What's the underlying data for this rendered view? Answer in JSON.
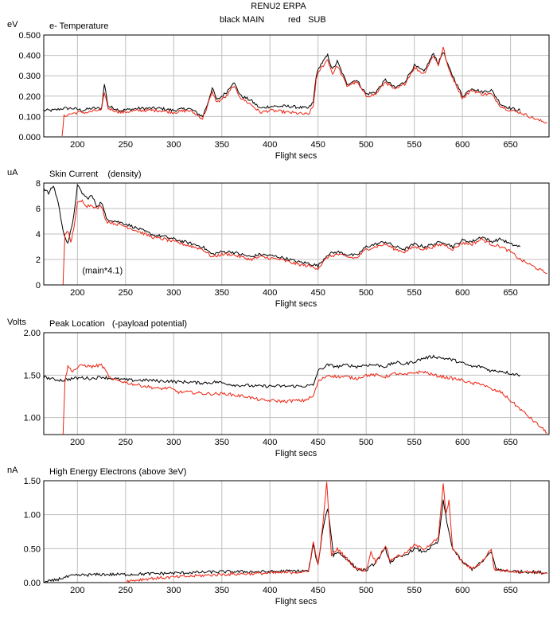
{
  "header": {
    "title": "RENU2 ERPA",
    "legend_black": "black MAIN",
    "legend_red": "red   SUB"
  },
  "colors": {
    "main": "#000000",
    "sub": "#ee2211",
    "grid": "#bfbfbf",
    "axis": "#000000"
  },
  "chart_data": [
    {
      "type": "line",
      "title": "e- Temperature",
      "unit": "eV",
      "xlabel": "Flight secs",
      "xlim": [
        165,
        690
      ],
      "ylim": [
        0,
        0.5
      ],
      "xticks": [
        200,
        250,
        300,
        350,
        400,
        450,
        500,
        550,
        600,
        650
      ],
      "yticks": [
        0,
        0.1,
        0.2,
        0.3,
        0.4,
        0.5
      ],
      "ytick_labels": [
        "0.000",
        "0.100",
        "0.200",
        "0.300",
        "0.400",
        "0.500"
      ],
      "annotation": "",
      "series": [
        {
          "name": "MAIN",
          "color": "black",
          "x": [
            165,
            175,
            185,
            195,
            205,
            215,
            225,
            228,
            232,
            245,
            265,
            285,
            300,
            315,
            320,
            330,
            335,
            340,
            345,
            355,
            362,
            370,
            380,
            390,
            400,
            420,
            440,
            445,
            448,
            452,
            460,
            465,
            470,
            480,
            490,
            500,
            510,
            520,
            530,
            540,
            550,
            560,
            570,
            575,
            580,
            585,
            590,
            600,
            610,
            620,
            630,
            640,
            650,
            660
          ],
          "y": [
            0.13,
            0.13,
            0.14,
            0.14,
            0.13,
            0.14,
            0.14,
            0.26,
            0.15,
            0.13,
            0.14,
            0.14,
            0.13,
            0.14,
            0.13,
            0.1,
            0.16,
            0.24,
            0.18,
            0.22,
            0.27,
            0.2,
            0.18,
            0.14,
            0.15,
            0.15,
            0.14,
            0.17,
            0.3,
            0.35,
            0.4,
            0.33,
            0.37,
            0.26,
            0.28,
            0.21,
            0.22,
            0.28,
            0.24,
            0.27,
            0.35,
            0.32,
            0.41,
            0.36,
            0.42,
            0.35,
            0.3,
            0.2,
            0.24,
            0.22,
            0.23,
            0.16,
            0.14,
            0.13
          ]
        },
        {
          "name": "SUB",
          "color": "red",
          "x": [
            184,
            186,
            190,
            200,
            210,
            220,
            225,
            228,
            232,
            245,
            265,
            285,
            300,
            315,
            320,
            330,
            335,
            340,
            345,
            355,
            362,
            370,
            380,
            390,
            400,
            420,
            440,
            445,
            448,
            452,
            460,
            465,
            470,
            480,
            490,
            500,
            510,
            520,
            530,
            540,
            550,
            560,
            570,
            575,
            580,
            585,
            590,
            600,
            610,
            620,
            630,
            640,
            650,
            660,
            670,
            680,
            688
          ],
          "y": [
            0.0,
            0.1,
            0.11,
            0.12,
            0.12,
            0.13,
            0.13,
            0.22,
            0.14,
            0.12,
            0.13,
            0.13,
            0.12,
            0.13,
            0.12,
            0.09,
            0.15,
            0.22,
            0.17,
            0.2,
            0.25,
            0.19,
            0.16,
            0.12,
            0.13,
            0.12,
            0.11,
            0.15,
            0.28,
            0.33,
            0.38,
            0.31,
            0.35,
            0.25,
            0.27,
            0.2,
            0.21,
            0.27,
            0.23,
            0.26,
            0.34,
            0.31,
            0.4,
            0.35,
            0.44,
            0.34,
            0.29,
            0.19,
            0.23,
            0.21,
            0.21,
            0.15,
            0.13,
            0.12,
            0.1,
            0.08,
            0.07
          ]
        }
      ]
    },
    {
      "type": "line",
      "title": "Skin Current    (density)",
      "unit": "uA",
      "xlabel": "Flight secs",
      "xlim": [
        165,
        690
      ],
      "ylim": [
        0,
        8
      ],
      "xticks": [
        200,
        250,
        300,
        350,
        400,
        450,
        500,
        550,
        600,
        650
      ],
      "yticks": [
        0,
        2,
        4,
        6,
        8
      ],
      "ytick_labels": [
        "0",
        "2",
        "4",
        "6",
        "8"
      ],
      "annotation": "(main*4.1)",
      "series": [
        {
          "name": "MAIN",
          "color": "black",
          "x": [
            165,
            170,
            175,
            180,
            185,
            190,
            195,
            200,
            205,
            210,
            215,
            220,
            225,
            230,
            240,
            250,
            260,
            270,
            280,
            290,
            300,
            310,
            320,
            330,
            340,
            350,
            360,
            370,
            380,
            390,
            400,
            410,
            420,
            430,
            440,
            450,
            460,
            470,
            480,
            490,
            500,
            510,
            520,
            530,
            540,
            550,
            560,
            570,
            580,
            590,
            600,
            610,
            620,
            630,
            640,
            650,
            660
          ],
          "y": [
            7.6,
            7.2,
            7.8,
            6.5,
            4.2,
            3.3,
            4.8,
            7.8,
            7.2,
            6.8,
            7.0,
            6.2,
            6.5,
            5.2,
            5.0,
            4.8,
            4.5,
            4.2,
            3.9,
            3.8,
            3.6,
            3.4,
            3.2,
            3.0,
            2.4,
            2.6,
            2.6,
            2.4,
            2.2,
            2.4,
            2.3,
            2.2,
            2.0,
            1.8,
            1.7,
            1.5,
            2.4,
            2.6,
            2.4,
            2.3,
            3.0,
            3.2,
            3.4,
            3.0,
            2.8,
            3.2,
            3.0,
            3.2,
            3.4,
            3.0,
            3.5,
            3.4,
            3.8,
            3.4,
            3.6,
            3.2,
            3.0
          ]
        },
        {
          "name": "SUB",
          "color": "red",
          "x": [
            185,
            187,
            190,
            193,
            196,
            200,
            205,
            210,
            215,
            220,
            225,
            230,
            240,
            250,
            260,
            270,
            280,
            290,
            300,
            310,
            320,
            330,
            340,
            350,
            360,
            370,
            380,
            390,
            400,
            410,
            420,
            430,
            440,
            450,
            460,
            470,
            480,
            490,
            500,
            510,
            520,
            530,
            540,
            550,
            560,
            570,
            580,
            590,
            600,
            610,
            620,
            630,
            640,
            650,
            660,
            670,
            680,
            688
          ],
          "y": [
            0.0,
            4.0,
            4.3,
            3.3,
            4.4,
            6.4,
            6.6,
            6.2,
            6.3,
            6.0,
            6.2,
            5.0,
            4.8,
            4.6,
            4.3,
            4.0,
            3.7,
            3.6,
            3.4,
            3.2,
            3.0,
            2.8,
            2.2,
            2.4,
            2.4,
            2.2,
            2.0,
            2.2,
            2.1,
            2.0,
            1.8,
            1.6,
            1.5,
            1.3,
            2.2,
            2.4,
            2.2,
            2.1,
            2.8,
            3.0,
            3.2,
            2.8,
            2.6,
            3.0,
            2.8,
            3.0,
            3.2,
            2.8,
            3.3,
            3.2,
            3.6,
            3.2,
            3.0,
            2.6,
            2.0,
            1.6,
            1.2,
            0.9
          ]
        }
      ]
    },
    {
      "type": "line",
      "title": "Peak Location   (-payload potential)",
      "unit": "Volts",
      "xlabel": "Flight secs",
      "xlim": [
        165,
        690
      ],
      "ylim": [
        0.8,
        2.0
      ],
      "xticks": [
        200,
        250,
        300,
        350,
        400,
        450,
        500,
        550,
        600,
        650
      ],
      "yticks": [
        1.0,
        1.5,
        2.0
      ],
      "ytick_labels": [
        "1.00",
        "1.50",
        "2.00"
      ],
      "annotation": "",
      "series": [
        {
          "name": "MAIN",
          "color": "black",
          "x": [
            165,
            175,
            185,
            195,
            205,
            215,
            225,
            235,
            245,
            255,
            265,
            275,
            285,
            295,
            305,
            315,
            325,
            335,
            345,
            355,
            365,
            375,
            385,
            395,
            405,
            415,
            425,
            435,
            445,
            450,
            460,
            470,
            480,
            490,
            500,
            510,
            520,
            530,
            540,
            550,
            560,
            570,
            580,
            590,
            600,
            610,
            620,
            630,
            640,
            650,
            660
          ],
          "y": [
            1.48,
            1.45,
            1.44,
            1.46,
            1.47,
            1.46,
            1.48,
            1.46,
            1.45,
            1.44,
            1.44,
            1.44,
            1.43,
            1.43,
            1.42,
            1.42,
            1.41,
            1.41,
            1.42,
            1.4,
            1.38,
            1.38,
            1.37,
            1.37,
            1.37,
            1.37,
            1.37,
            1.37,
            1.38,
            1.55,
            1.62,
            1.6,
            1.62,
            1.6,
            1.62,
            1.62,
            1.6,
            1.65,
            1.63,
            1.66,
            1.7,
            1.72,
            1.7,
            1.68,
            1.64,
            1.6,
            1.6,
            1.55,
            1.55,
            1.52,
            1.5
          ]
        },
        {
          "name": "SUB",
          "color": "red",
          "x": [
            185,
            187,
            190,
            195,
            205,
            215,
            225,
            235,
            245,
            255,
            265,
            275,
            285,
            295,
            305,
            315,
            325,
            335,
            345,
            355,
            365,
            375,
            385,
            395,
            405,
            415,
            425,
            435,
            445,
            450,
            460,
            470,
            480,
            490,
            500,
            510,
            520,
            530,
            540,
            550,
            560,
            570,
            580,
            590,
            600,
            610,
            620,
            630,
            640,
            650,
            660,
            670,
            680,
            688
          ],
          "y": [
            0.8,
            1.42,
            1.6,
            1.55,
            1.62,
            1.6,
            1.62,
            1.45,
            1.43,
            1.4,
            1.38,
            1.36,
            1.34,
            1.35,
            1.3,
            1.3,
            1.29,
            1.28,
            1.28,
            1.28,
            1.26,
            1.25,
            1.22,
            1.2,
            1.2,
            1.19,
            1.2,
            1.2,
            1.25,
            1.42,
            1.5,
            1.48,
            1.48,
            1.46,
            1.5,
            1.5,
            1.48,
            1.52,
            1.5,
            1.53,
            1.54,
            1.5,
            1.48,
            1.46,
            1.44,
            1.4,
            1.4,
            1.33,
            1.3,
            1.2,
            1.1,
            1.0,
            0.9,
            0.82
          ]
        }
      ]
    },
    {
      "type": "line",
      "title": "High Energy Electrons (above 3eV)",
      "unit": "nA",
      "xlabel": "Flight secs",
      "xlim": [
        165,
        690
      ],
      "ylim": [
        0,
        1.5
      ],
      "xticks": [
        200,
        250,
        300,
        350,
        400,
        450,
        500,
        550,
        600,
        650
      ],
      "yticks": [
        0,
        0.5,
        1.0,
        1.5
      ],
      "ytick_labels": [
        "0.00",
        "0.50",
        "1.00",
        "1.50"
      ],
      "annotation": "",
      "series": [
        {
          "name": "MAIN",
          "color": "black",
          "x": [
            165,
            175,
            185,
            195,
            205,
            225,
            250,
            275,
            300,
            325,
            350,
            375,
            400,
            420,
            440,
            445,
            450,
            455,
            460,
            462,
            466,
            470,
            480,
            490,
            500,
            510,
            520,
            525,
            530,
            540,
            550,
            560,
            570,
            575,
            580,
            585,
            590,
            600,
            610,
            620,
            630,
            635,
            640,
            650,
            660,
            670,
            680,
            688
          ],
          "y": [
            0.0,
            0.03,
            0.07,
            0.1,
            0.11,
            0.12,
            0.12,
            0.13,
            0.14,
            0.15,
            0.16,
            0.16,
            0.16,
            0.17,
            0.17,
            0.55,
            0.25,
            0.8,
            1.1,
            0.9,
            0.4,
            0.45,
            0.35,
            0.2,
            0.18,
            0.3,
            0.5,
            0.3,
            0.35,
            0.4,
            0.5,
            0.45,
            0.55,
            0.6,
            1.2,
            0.8,
            0.5,
            0.3,
            0.2,
            0.3,
            0.45,
            0.2,
            0.18,
            0.17,
            0.16,
            0.16,
            0.15,
            0.14
          ]
        },
        {
          "name": "SUB",
          "color": "red",
          "x": [
            250,
            275,
            300,
            325,
            350,
            375,
            400,
            420,
            440,
            445,
            450,
            455,
            459,
            461,
            464,
            470,
            480,
            490,
            500,
            505,
            510,
            520,
            525,
            530,
            540,
            550,
            560,
            570,
            575,
            580,
            583,
            586,
            590,
            600,
            610,
            620,
            630,
            633,
            640,
            650,
            660,
            670,
            680,
            688
          ],
          "y": [
            0.02,
            0.06,
            0.08,
            0.1,
            0.12,
            0.13,
            0.14,
            0.15,
            0.16,
            0.6,
            0.25,
            0.85,
            1.5,
            1.0,
            0.4,
            0.5,
            0.35,
            0.2,
            0.18,
            0.45,
            0.3,
            0.55,
            0.32,
            0.38,
            0.42,
            0.55,
            0.5,
            0.6,
            0.65,
            1.45,
            1.0,
            1.2,
            0.5,
            0.3,
            0.2,
            0.3,
            0.5,
            0.2,
            0.18,
            0.17,
            0.16,
            0.16,
            0.15,
            0.13
          ]
        }
      ]
    }
  ]
}
